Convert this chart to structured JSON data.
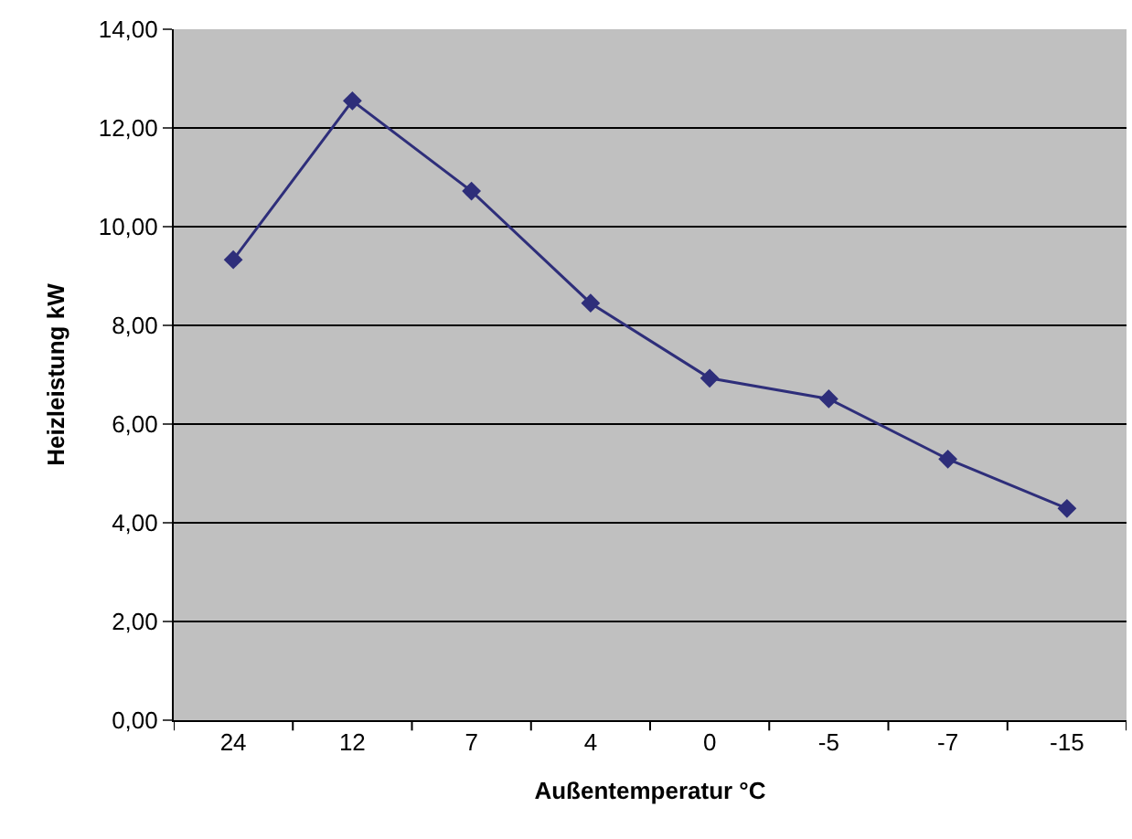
{
  "chart_data": {
    "type": "line",
    "xlabel": "Außentemperatur °C",
    "ylabel": "Heizleistung kW",
    "categories": [
      "24",
      "12",
      "7",
      "4",
      "0",
      "-5",
      "-7",
      "-15"
    ],
    "series": [
      {
        "color": "#2e2e7a",
        "values": [
          9.33,
          12.55,
          10.72,
          8.45,
          6.93,
          6.51,
          5.29,
          4.29
        ]
      }
    ],
    "ylim": [
      0,
      14
    ],
    "yticks": [
      {
        "value": 0,
        "label": "0,00"
      },
      {
        "value": 2,
        "label": "2,00"
      },
      {
        "value": 4,
        "label": "4,00"
      },
      {
        "value": 6,
        "label": "6,00"
      },
      {
        "value": 8,
        "label": "8,00"
      },
      {
        "value": 10,
        "label": "10,00"
      },
      {
        "value": 12,
        "label": "12,00"
      },
      {
        "value": 14,
        "label": "14,00"
      }
    ],
    "grid": "y",
    "legend": false,
    "marker": "diamond",
    "line_style": "solid"
  }
}
